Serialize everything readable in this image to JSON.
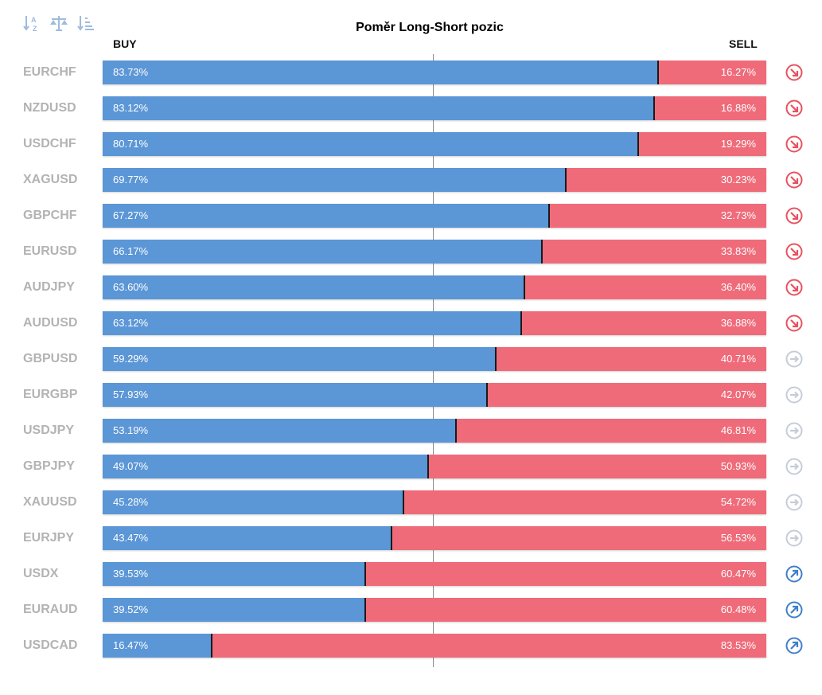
{
  "colors": {
    "buy": "#5b96d6",
    "sell": "#ef6b79",
    "down": "#e8525f",
    "neutral": "#c4cdd8",
    "up": "#3f7fc8",
    "toolbar": "#9fbbdc"
  },
  "toolbar": {
    "icons": [
      "sort-az-icon",
      "balance-scale-icon",
      "sort-list-icon"
    ],
    "sort_az_top": "A",
    "sort_az_bottom": "Z"
  },
  "chart_data": {
    "type": "bar",
    "title": "Poměr Long-Short pozic",
    "buy_label": "BUY",
    "sell_label": "SELL",
    "stacked": true,
    "orientation": "horizontal",
    "xlim": [
      0,
      100
    ],
    "categories": [
      "EURCHF",
      "NZDUSD",
      "USDCHF",
      "XAGUSD",
      "GBPCHF",
      "EURUSD",
      "AUDJPY",
      "AUDUSD",
      "GBPUSD",
      "EURGBP",
      "USDJPY",
      "GBPJPY",
      "XAUUSD",
      "EURJPY",
      "USDX",
      "EURAUD",
      "USDCAD"
    ],
    "series": [
      {
        "name": "BUY",
        "values": [
          83.73,
          83.12,
          80.71,
          69.77,
          67.27,
          66.17,
          63.6,
          63.12,
          59.29,
          57.93,
          53.19,
          49.07,
          45.28,
          43.47,
          39.53,
          39.52,
          16.47
        ]
      },
      {
        "name": "SELL",
        "values": [
          16.27,
          16.88,
          19.29,
          30.23,
          32.73,
          33.83,
          36.4,
          36.88,
          40.71,
          42.07,
          46.81,
          50.93,
          54.72,
          56.53,
          60.47,
          60.48,
          83.53
        ]
      }
    ],
    "buy_labels": [
      "83.73%",
      "83.12%",
      "80.71%",
      "69.77%",
      "67.27%",
      "66.17%",
      "63.60%",
      "63.12%",
      "59.29%",
      "57.93%",
      "53.19%",
      "49.07%",
      "45.28%",
      "43.47%",
      "39.53%",
      "39.52%",
      "16.47%"
    ],
    "sell_labels": [
      "16.27%",
      "16.88%",
      "19.29%",
      "30.23%",
      "32.73%",
      "33.83%",
      "36.40%",
      "36.88%",
      "40.71%",
      "42.07%",
      "46.81%",
      "50.93%",
      "54.72%",
      "56.53%",
      "60.47%",
      "60.48%",
      "83.53%"
    ],
    "signals": [
      "down",
      "down",
      "down",
      "down",
      "down",
      "down",
      "down",
      "down",
      "neutral",
      "neutral",
      "neutral",
      "neutral",
      "neutral",
      "neutral",
      "up",
      "up",
      "up"
    ]
  }
}
